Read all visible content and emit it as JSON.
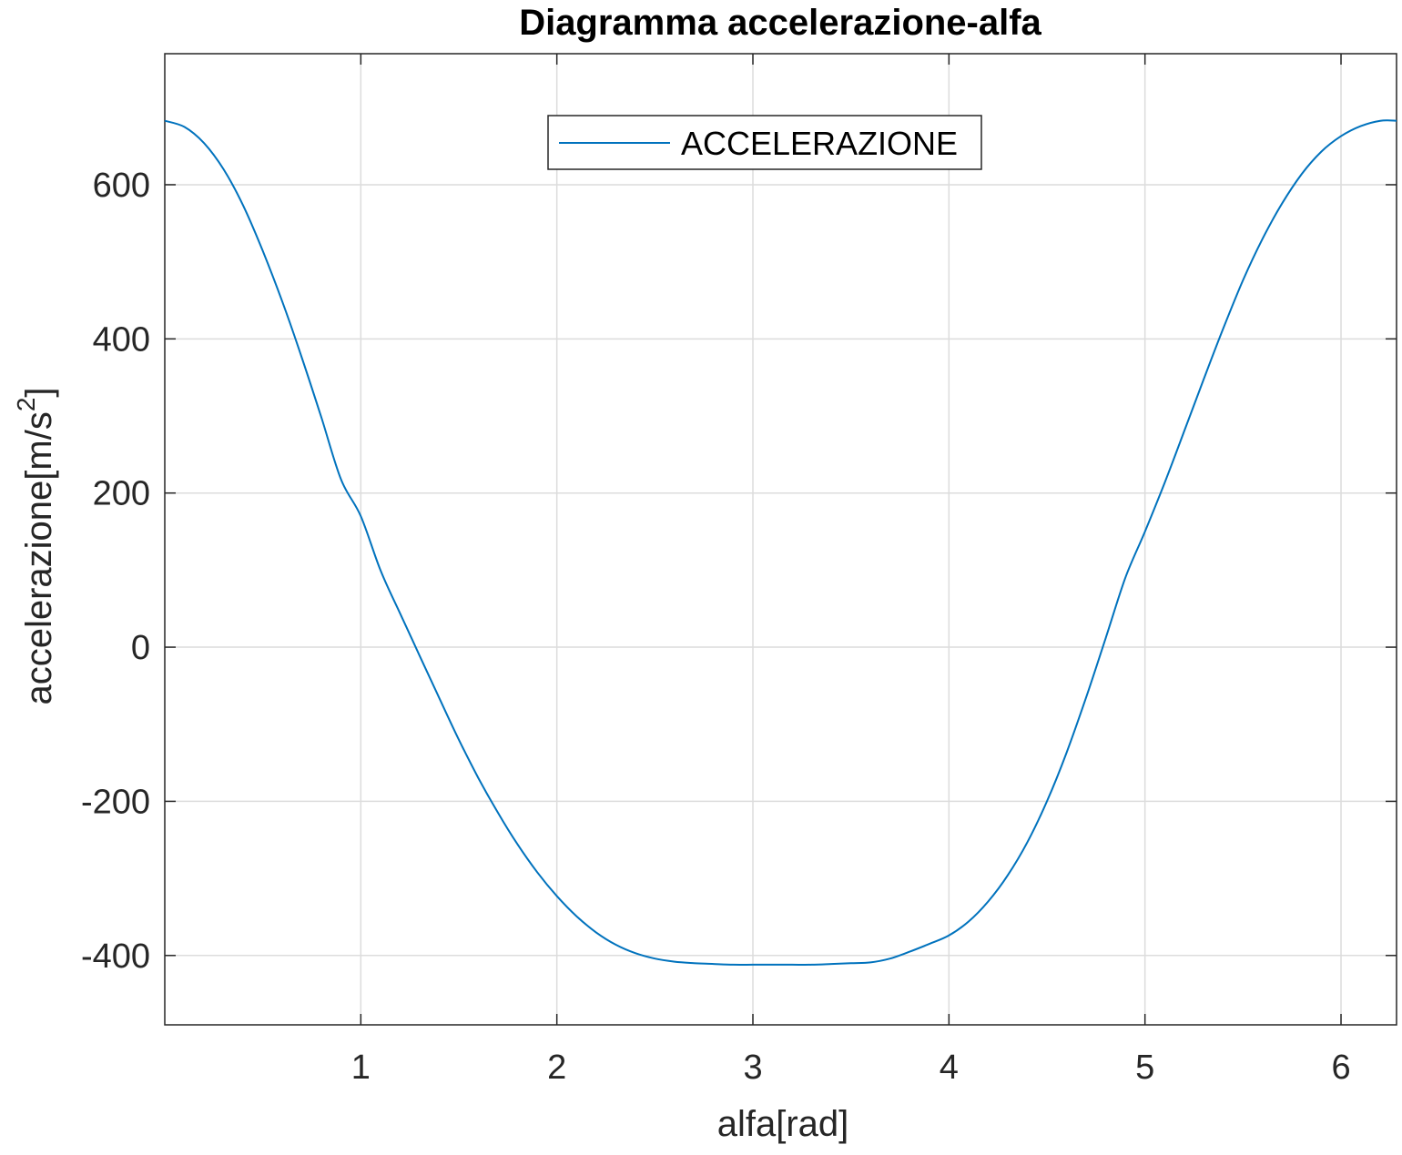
{
  "chart_data": {
    "type": "line",
    "title": "Diagramma accelerazione-alfa",
    "xlabel": "alfa[rad]",
    "ylabel": "accelerazione[m/s",
    "ylabel_superscript": "2",
    "ylabel_suffix": "]",
    "xlim": [
      0,
      6.2832
    ],
    "ylim": [
      -490,
      770
    ],
    "xticks": [
      1,
      2,
      3,
      4,
      5,
      6
    ],
    "yticks": [
      -400,
      -200,
      0,
      200,
      400,
      600
    ],
    "grid": true,
    "legend": {
      "position": "top-center",
      "entries": [
        "ACCELERAZIONE"
      ]
    },
    "series": [
      {
        "name": "ACCELERAZIONE",
        "color": "#0072bd",
        "x": [
          0,
          0.1,
          0.2,
          0.3,
          0.4,
          0.5,
          0.6,
          0.7,
          0.8,
          0.9,
          1.0,
          1.1,
          1.2,
          1.3,
          1.4,
          1.5,
          1.6,
          1.7,
          1.8,
          1.9,
          2.0,
          2.1,
          2.2,
          2.3,
          2.4,
          2.5,
          2.6,
          2.7,
          2.8,
          2.9,
          3.0,
          3.1,
          3.2,
          3.3,
          3.4,
          3.5,
          3.6,
          3.7,
          3.8,
          3.9,
          4.0,
          4.1,
          4.2,
          4.3,
          4.4,
          4.5,
          4.6,
          4.7,
          4.8,
          4.9,
          5.0,
          5.1,
          5.2,
          5.3,
          5.4,
          5.5,
          5.6,
          5.7,
          5.8,
          5.9,
          6.0,
          6.1,
          6.2,
          6.2832
        ],
        "values": [
          683,
          675,
          654,
          620,
          573,
          514,
          448,
          375,
          297,
          217,
          170,
          100,
          44,
          -11,
          -66,
          -120,
          -170,
          -215,
          -256,
          -292,
          -323,
          -349,
          -370,
          -386,
          -397,
          -404,
          -408,
          -410,
          -411,
          -412,
          -412,
          -412,
          -412,
          -412,
          -411,
          -410,
          -409,
          -404,
          -395,
          -385,
          -374,
          -356,
          -330,
          -296,
          -253,
          -200,
          -137,
          -65,
          12,
          90,
          150,
          213,
          280,
          348,
          414,
          476,
          530,
          576,
          614,
          643,
          663,
          676,
          683,
          683
        ]
      }
    ]
  }
}
